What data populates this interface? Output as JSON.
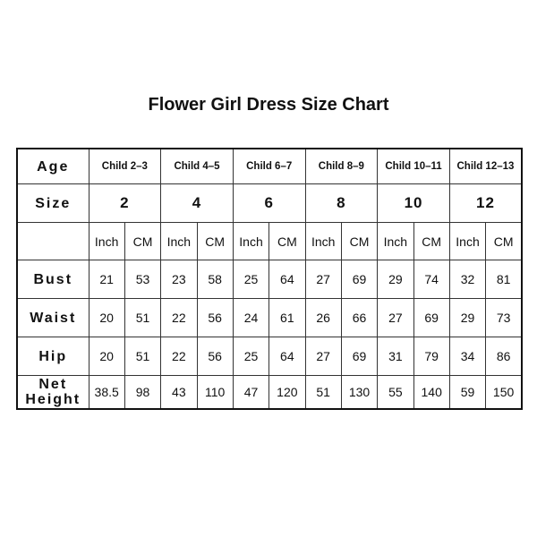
{
  "title": "Flower Girl Dress Size Chart",
  "chart_data": {
    "type": "table",
    "row_labels": {
      "age": "Age",
      "size": "Size",
      "bust": "Bust",
      "waist": "Waist",
      "hip": "Hip",
      "net_height": [
        "Net",
        "Height"
      ]
    },
    "ages": [
      "Child 2–3",
      "Child 4–5",
      "Child 6–7",
      "Child 8–9",
      "Child 10–11",
      "Child 12–13"
    ],
    "sizes": [
      "2",
      "4",
      "6",
      "8",
      "10",
      "12"
    ],
    "units": [
      "Inch",
      "CM"
    ],
    "rows": [
      {
        "key": "bust",
        "values": [
          "21",
          "53",
          "23",
          "58",
          "25",
          "64",
          "27",
          "69",
          "29",
          "74",
          "32",
          "81"
        ]
      },
      {
        "key": "waist",
        "values": [
          "20",
          "51",
          "22",
          "56",
          "24",
          "61",
          "26",
          "66",
          "27",
          "69",
          "29",
          "73"
        ]
      },
      {
        "key": "hip",
        "values": [
          "20",
          "51",
          "22",
          "56",
          "25",
          "64",
          "27",
          "69",
          "31",
          "79",
          "34",
          "86"
        ]
      },
      {
        "key": "net_height",
        "values": [
          "38.5",
          "98",
          "43",
          "110",
          "47",
          "120",
          "51",
          "130",
          "55",
          "140",
          "59",
          "150"
        ]
      }
    ]
  }
}
